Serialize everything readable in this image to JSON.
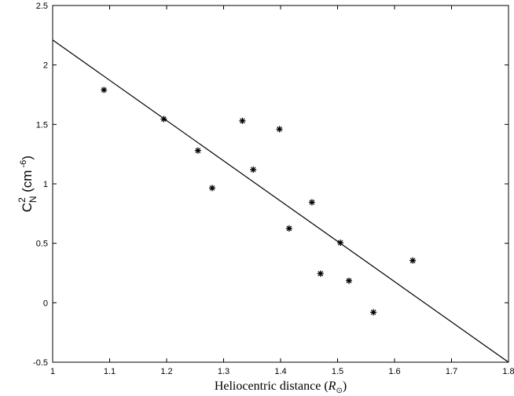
{
  "chart_data": {
    "type": "scatter",
    "title": "",
    "xlabel": {
      "main": "Heliocentric distance (",
      "symbol": "R",
      "subscript": "⊙",
      "close": ")"
    },
    "ylabel": {
      "base": "C",
      "sup": "2",
      "sub": "N",
      "unit_open": " (cm",
      "unit_sup": " -6",
      "unit_close": ")"
    },
    "xlim": [
      1.0,
      1.8
    ],
    "ylim": [
      -0.5,
      2.5
    ],
    "xticks": [
      "1",
      "1.1",
      "1.2",
      "1.3",
      "1.4",
      "1.5",
      "1.6",
      "1.7",
      "1.8"
    ],
    "yticks": [
      "-0.5",
      "0",
      "0.5",
      "1",
      "1.5",
      "2",
      "2.5"
    ],
    "grid": false,
    "legend": "none",
    "series": [
      {
        "kind": "points",
        "marker": "asterisk",
        "color": "#000000",
        "points": [
          {
            "x": 1.09,
            "y": 1.79
          },
          {
            "x": 1.195,
            "y": 1.545
          },
          {
            "x": 1.255,
            "y": 1.28
          },
          {
            "x": 1.28,
            "y": 0.965
          },
          {
            "x": 1.333,
            "y": 1.53
          },
          {
            "x": 1.352,
            "y": 1.12
          },
          {
            "x": 1.398,
            "y": 1.46
          },
          {
            "x": 1.415,
            "y": 0.625
          },
          {
            "x": 1.455,
            "y": 0.845
          },
          {
            "x": 1.47,
            "y": 0.245
          },
          {
            "x": 1.505,
            "y": 0.505
          },
          {
            "x": 1.52,
            "y": 0.185
          },
          {
            "x": 1.563,
            "y": -0.08
          },
          {
            "x": 1.632,
            "y": 0.355
          }
        ]
      },
      {
        "kind": "line",
        "color": "#000000",
        "points": [
          {
            "x": 1.0,
            "y": 2.21
          },
          {
            "x": 1.8,
            "y": -0.5
          }
        ]
      }
    ]
  }
}
